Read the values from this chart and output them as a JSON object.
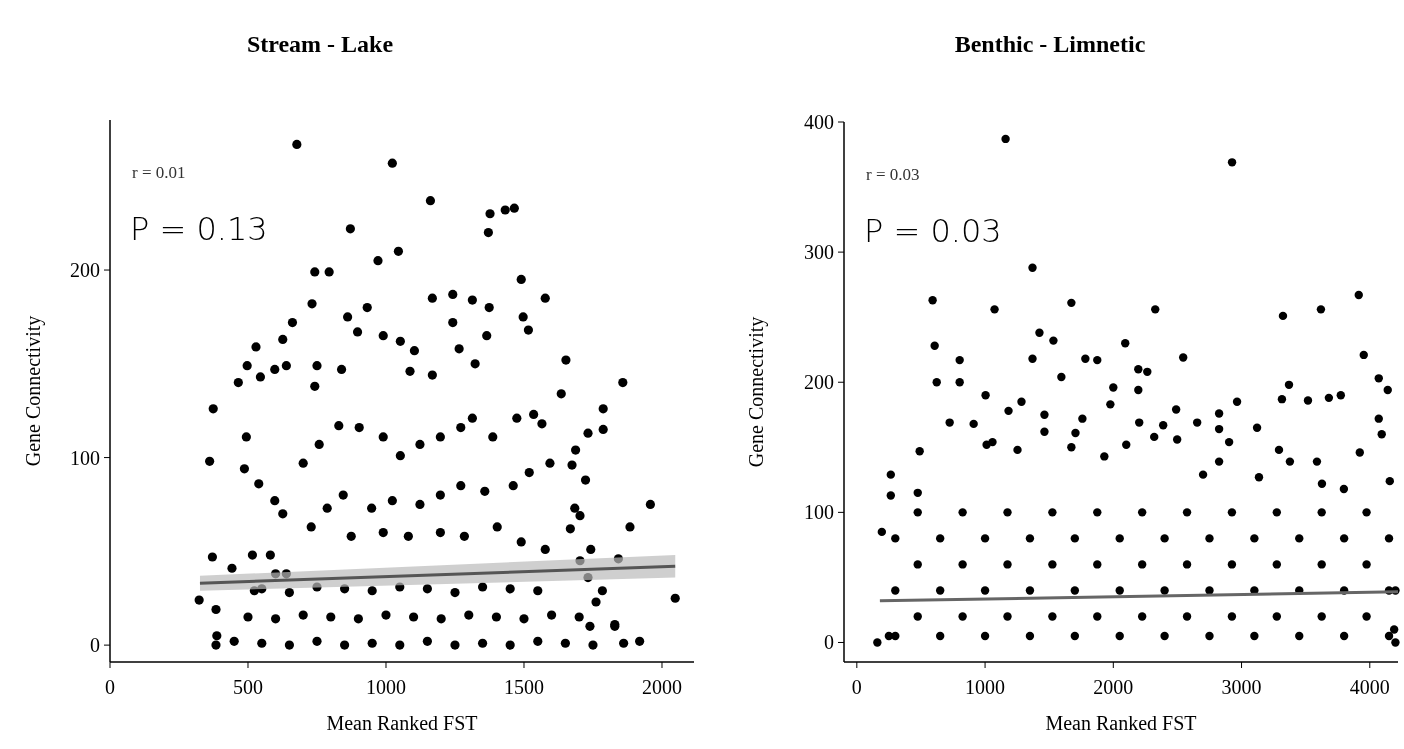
{
  "chart_data": [
    {
      "type": "scatter",
      "title": "Stream - Lake",
      "xlabel": "Mean Ranked FST",
      "ylabel": "Gene Connectivity",
      "xlim": [
        0,
        2116
      ],
      "ylim": [
        -9,
        280
      ],
      "xticks": [
        0,
        500,
        1000,
        1500,
        2000
      ],
      "yticks": [
        0,
        100,
        200
      ],
      "annotations": [
        "r = 0.01",
        "P = 0.13"
      ],
      "series": [
        {
          "marker": "circle",
          "color": "#000000",
          "x": [
            677,
            1023,
            1161,
            871,
            1377,
            1432,
            1465,
            1371,
            1045,
            971,
            742,
            794,
            732,
            661,
            626,
            529,
            497,
            465,
            374,
            361,
            371,
            323,
            384,
            387,
            384,
            2048,
            1958,
            1884,
            1842,
            1858,
            1787,
            1787,
            1829,
            1861,
            1919,
            1577,
            1490,
            1497,
            1516,
            1652,
            1635,
            1168,
            1242,
            1313,
            1374,
            1365,
            1242,
            1265,
            1323,
            1168,
            990,
            932,
            861,
            897,
            1052,
            1103,
            1087,
            750,
            839,
            742,
            639,
            597,
            545,
            1732,
            1687,
            1723,
            1674,
            1684,
            1703,
            1668,
            1703,
            1742,
            1732,
            1784,
            1761,
            1829,
            1700,
            1739,
            494,
            487,
            539,
            597,
            626,
            581,
            516,
            442,
            639,
            523,
            600,
            700,
            758,
            829,
            903,
            990,
            1052,
            1123,
            1197,
            1271,
            1313,
            1387,
            1474,
            1535,
            1565,
            1594,
            1519,
            1461,
            1358,
            1271,
            1197,
            1123,
            1023,
            948,
            845,
            787,
            729,
            874,
            990,
            1081,
            1197,
            1284,
            1403,
            1490,
            1577,
            450,
            550,
            650,
            750,
            850,
            950,
            1050,
            1150,
            1250,
            1350,
            1450,
            1550,
            1650,
            1750,
            500,
            600,
            700,
            800,
            900,
            1000,
            1100,
            1200,
            1300,
            1400,
            1500,
            1600,
            550,
            650,
            750,
            850,
            950,
            1050,
            1150,
            1250,
            1350,
            1450,
            1550
          ],
          "values": [
            267,
            257,
            237,
            222,
            230,
            232,
            233,
            220,
            210,
            205,
            199,
            199,
            182,
            172,
            163,
            159,
            149,
            140,
            126,
            98,
            47,
            24,
            19,
            5,
            0,
            25,
            75,
            63,
            46,
            140,
            126,
            115,
            10,
            1,
            2,
            185,
            195,
            175,
            168,
            152,
            134,
            185,
            187,
            184,
            180,
            165,
            172,
            158,
            150,
            144,
            165,
            180,
            175,
            167,
            162,
            157,
            146,
            149,
            147,
            138,
            149,
            147,
            143,
            113,
            104,
            88,
            96,
            73,
            69,
            62,
            45,
            51,
            36,
            29,
            23,
            11,
            15,
            10,
            111,
            94,
            86,
            77,
            70,
            48,
            48,
            41,
            38,
            29,
            38,
            97,
            107,
            117,
            116,
            111,
            101,
            107,
            111,
            116,
            121,
            111,
            121,
            123,
            118,
            97,
            92,
            85,
            82,
            85,
            80,
            75,
            77,
            73,
            80,
            73,
            63,
            58,
            60,
            58,
            60,
            58,
            63,
            55,
            51,
            2,
            1,
            0,
            2,
            0,
            1,
            0,
            2,
            0,
            1,
            0,
            2,
            1,
            0,
            15,
            14,
            16,
            15,
            14,
            16,
            15,
            14,
            16,
            15,
            14,
            16,
            30,
            28,
            31,
            30,
            29,
            31,
            30,
            28,
            31,
            30,
            29
          ]
        },
        {
          "type": "line",
          "color": "#555555",
          "x": [
            326,
            2048
          ],
          "values": [
            33,
            42
          ],
          "lower": [
            29,
            36
          ],
          "upper": [
            37,
            48
          ]
        }
      ]
    },
    {
      "type": "scatter",
      "title": "Benthic - Limnetic",
      "xlabel": "Mean Ranked FST",
      "ylabel": "Gene Connectivity",
      "xlim": [
        -100,
        4220
      ],
      "ylim": [
        -15,
        400
      ],
      "xticks": [
        0,
        1000,
        2000,
        3000,
        4000
      ],
      "yticks": [
        0,
        100,
        200,
        300,
        400
      ],
      "annotations": [
        "r = 0.03",
        "P = 0.03"
      ],
      "series": [
        {
          "marker": "circle",
          "color": "#000000",
          "x": [
            1160,
            2926,
            1370,
            591,
            1074,
            1673,
            2327,
            3323,
            3619,
            3914,
            3953,
            607,
            802,
            623,
            802,
            490,
            195,
            265,
            265,
            475,
            1424,
            1533,
            1370,
            1595,
            1782,
            1875,
            2093,
            2000,
            1977,
            2195,
            2265,
            2195,
            2545,
            2965,
            2825,
            3370,
            3315,
            3518,
            3681,
            3774,
            4070,
            4140,
            4070,
            4093,
            4156,
            3922,
            3292,
            3588,
            3121,
            2903,
            2825,
            2490,
            2202,
            2389,
            2654,
            2498,
            2319,
            2101,
            1930,
            1759,
            1705,
            1463,
            1463,
            1284,
            1183,
            1004,
            1012,
            724,
            911,
            1058,
            1253,
            1673,
            3798,
            3627,
            3377,
            2825,
            2700,
            3136,
            300,
            650,
            1000,
            1350,
            1700,
            2050,
            2400,
            2750,
            3100,
            3450,
            3800,
            4150,
            475,
            825,
            1175,
            1525,
            1875,
            2225,
            2575,
            2925,
            3275,
            3625,
            3975,
            300,
            650,
            1000,
            1350,
            1700,
            2050,
            2400,
            2750,
            3100,
            3450,
            3800,
            4150,
            475,
            825,
            1175,
            1525,
            1875,
            2225,
            2575,
            2925,
            3275,
            3625,
            3975,
            300,
            650,
            1000,
            1350,
            1700,
            2050,
            2400,
            2750,
            3100,
            3450,
            3800,
            4150,
            475,
            825,
            1175,
            1525,
            1875,
            2225,
            2575,
            2925,
            3275,
            3625,
            3975,
            160,
            250,
            4200,
            4190,
            4200
          ],
          "values": [
            387,
            369,
            288,
            263,
            256,
            261,
            256,
            251,
            256,
            267,
            221,
            228,
            217,
            200,
            200,
            147,
            85,
            129,
            113,
            115,
            238,
            232,
            218,
            204,
            218,
            217,
            230,
            196,
            183,
            210,
            208,
            194,
            219,
            185,
            176,
            198,
            187,
            186,
            188,
            190,
            203,
            194,
            172,
            160,
            124,
            146,
            148,
            139,
            165,
            154,
            164,
            179,
            169,
            167,
            169,
            156,
            158,
            152,
            143,
            172,
            161,
            175,
            162,
            185,
            178,
            190,
            152,
            169,
            168,
            154,
            148,
            150,
            118,
            122,
            139,
            139,
            129,
            127,
            5,
            5,
            5,
            5,
            5,
            5,
            5,
            5,
            5,
            5,
            5,
            5,
            20,
            20,
            20,
            20,
            20,
            20,
            20,
            20,
            20,
            20,
            20,
            40,
            40,
            40,
            40,
            40,
            40,
            40,
            40,
            40,
            40,
            40,
            40,
            60,
            60,
            60,
            60,
            60,
            60,
            60,
            60,
            60,
            60,
            60,
            80,
            80,
            80,
            80,
            80,
            80,
            80,
            80,
            80,
            80,
            80,
            80,
            100,
            100,
            100,
            100,
            100,
            100,
            100,
            100,
            100,
            100,
            100,
            0,
            5,
            0,
            10,
            40
          ]
        },
        {
          "type": "line",
          "color": "#666666",
          "x": [
            180,
            4220
          ],
          "values": [
            32,
            39
          ]
        }
      ]
    }
  ]
}
